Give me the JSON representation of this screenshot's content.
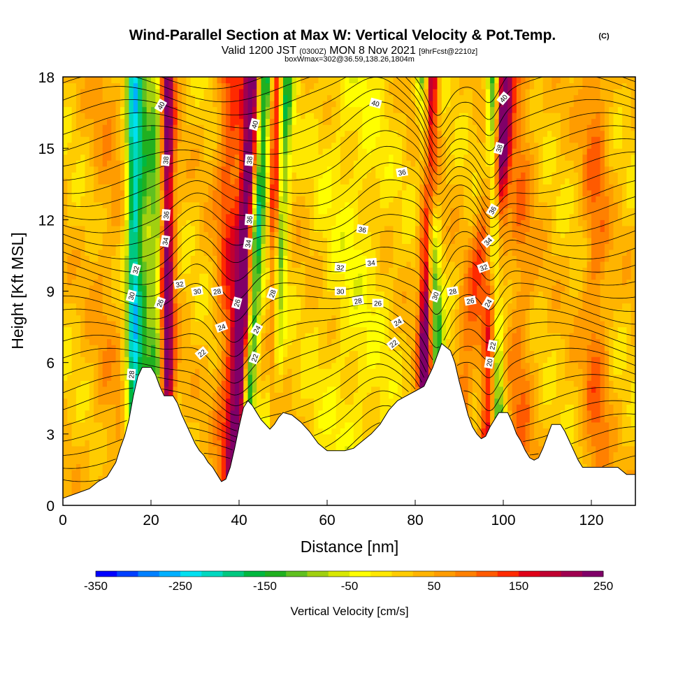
{
  "chart_data": {
    "type": "heatmap",
    "title": "Wind-Parallel Section at Max W: Vertical Velocity & Pot.Temp.",
    "title_mark": "(C)",
    "subtitle_prefix": "Valid 1200 JST",
    "subtitle_utc": "(0300Z)",
    "subtitle_date": "MON 8 Nov 2021",
    "subtitle_fcst": "[9hrFcst@2210z]",
    "subtitle2": "boxWmax=302@36.59,138.26,1804m",
    "xlabel": "Distance [nm]",
    "ylabel": "Height [Kft MSL]",
    "xlim": [
      0,
      130
    ],
    "ylim": [
      0,
      18
    ],
    "xticks": [
      0,
      20,
      40,
      60,
      80,
      100,
      120
    ],
    "yticks": [
      0,
      3,
      6,
      9,
      12,
      15,
      18
    ],
    "colorbar": {
      "label": "Vertical Velocity [cm/s]",
      "ticks": [
        -350,
        -250,
        -150,
        -50,
        50,
        150,
        250
      ],
      "range": [
        -350,
        250
      ],
      "step": 25,
      "colors": [
        "#0000ff",
        "#0040ff",
        "#0080ff",
        "#00b0ff",
        "#00e0f0",
        "#00d8c0",
        "#00c880",
        "#00b840",
        "#20b020",
        "#60c020",
        "#a0d010",
        "#d8e800",
        "#ffff00",
        "#ffe800",
        "#ffcc00",
        "#ffb400",
        "#ff9c00",
        "#ff8000",
        "#ff5a00",
        "#ff2a00",
        "#e00018",
        "#c00030",
        "#a00050",
        "#800068"
      ]
    },
    "terrain": [
      [
        0,
        0.3
      ],
      [
        3,
        0.5
      ],
      [
        6,
        0.7
      ],
      [
        8,
        1.0
      ],
      [
        10,
        1.2
      ],
      [
        12,
        1.8
      ],
      [
        13,
        2.4
      ],
      [
        14,
        2.9
      ],
      [
        15,
        3.6
      ],
      [
        16,
        4.6
      ],
      [
        17,
        5.4
      ],
      [
        18,
        5.8
      ],
      [
        20,
        5.8
      ],
      [
        21,
        5.5
      ],
      [
        22,
        5.0
      ],
      [
        23,
        4.6
      ],
      [
        25,
        4.6
      ],
      [
        26,
        4.3
      ],
      [
        27,
        3.8
      ],
      [
        28,
        3.4
      ],
      [
        29,
        3.0
      ],
      [
        30,
        2.6
      ],
      [
        31,
        2.3
      ],
      [
        32,
        2.1
      ],
      [
        33,
        1.8
      ],
      [
        34,
        1.6
      ],
      [
        35,
        1.3
      ],
      [
        36,
        1.0
      ],
      [
        37,
        1.1
      ],
      [
        38,
        1.6
      ],
      [
        39,
        2.4
      ],
      [
        40,
        3.3
      ],
      [
        41,
        4.1
      ],
      [
        42,
        4.4
      ],
      [
        43,
        4.2
      ],
      [
        44,
        3.9
      ],
      [
        45,
        3.6
      ],
      [
        46,
        3.4
      ],
      [
        47,
        3.2
      ],
      [
        48,
        3.4
      ],
      [
        49,
        3.7
      ],
      [
        50,
        3.9
      ],
      [
        52,
        3.8
      ],
      [
        54,
        3.5
      ],
      [
        56,
        3.1
      ],
      [
        58,
        2.6
      ],
      [
        60,
        2.3
      ],
      [
        64,
        2.3
      ],
      [
        66,
        2.4
      ],
      [
        68,
        2.7
      ],
      [
        70,
        3.0
      ],
      [
        72,
        3.4
      ],
      [
        74,
        4.0
      ],
      [
        76,
        4.4
      ],
      [
        78,
        4.6
      ],
      [
        80,
        4.8
      ],
      [
        82,
        5.0
      ],
      [
        84,
        5.8
      ],
      [
        86,
        6.8
      ],
      [
        88,
        6.5
      ],
      [
        89,
        6.0
      ],
      [
        90,
        5.2
      ],
      [
        91,
        4.5
      ],
      [
        92,
        3.8
      ],
      [
        93,
        3.3
      ],
      [
        94,
        3.0
      ],
      [
        95,
        2.8
      ],
      [
        96,
        2.9
      ],
      [
        97,
        3.3
      ],
      [
        98,
        3.6
      ],
      [
        99,
        3.9
      ],
      [
        101,
        3.9
      ],
      [
        102,
        3.5
      ],
      [
        103,
        3.0
      ],
      [
        104,
        2.7
      ],
      [
        105,
        2.3
      ],
      [
        106,
        2.0
      ],
      [
        107,
        1.9
      ],
      [
        108,
        2.0
      ],
      [
        109,
        2.4
      ],
      [
        110,
        2.9
      ],
      [
        111,
        3.4
      ],
      [
        113,
        3.4
      ],
      [
        114,
        3.1
      ],
      [
        115,
        2.7
      ],
      [
        116,
        2.3
      ],
      [
        117,
        1.9
      ],
      [
        118,
        1.6
      ],
      [
        121,
        1.6
      ],
      [
        124,
        1.6
      ],
      [
        126,
        1.6
      ],
      [
        128,
        1.3
      ],
      [
        130,
        1.3
      ]
    ],
    "velocity_features": [
      {
        "x0": 23.5,
        "x1": 23.5,
        "w": 1.8,
        "v": 240
      },
      {
        "x0": 21.5,
        "x1": 21.5,
        "w": 1.5,
        "v": -150
      },
      {
        "x0": 18.5,
        "x1": 18.5,
        "w": 2.0,
        "v": -120
      },
      {
        "x0": 16,
        "x1": 16,
        "w": 1.6,
        "v": -220
      },
      {
        "x0": 39.5,
        "x1": 43,
        "w": 1.8,
        "v": 240
      },
      {
        "x0": 41.5,
        "x1": 46,
        "w": 1.6,
        "v": -200
      },
      {
        "x0": 38,
        "x1": 38,
        "w": 3,
        "v": 110
      },
      {
        "x0": 47,
        "x1": 51,
        "w": 1.6,
        "v": -150
      },
      {
        "x0": 47.5,
        "x1": 48.5,
        "w": 1.2,
        "v": 160
      },
      {
        "x0": 82,
        "x1": 83.5,
        "w": 1.6,
        "v": 260
      },
      {
        "x0": 86,
        "x1": 82,
        "w": 1.6,
        "v": -190
      },
      {
        "x0": 96,
        "x1": 100.5,
        "w": 1.8,
        "v": 160
      },
      {
        "x0": 99,
        "x1": 97.5,
        "w": 1.4,
        "v": -200
      },
      {
        "x0": 88,
        "x1": 101,
        "w": 2.5,
        "v": 90
      },
      {
        "x0": 104,
        "x1": 104,
        "w": 3,
        "v": 60
      },
      {
        "x0": 121,
        "x1": 121,
        "w": 3,
        "v": 70
      },
      {
        "x0": 66,
        "x1": 66,
        "w": 8,
        "v": -40
      },
      {
        "x0": 10,
        "x1": 10,
        "w": 4,
        "v": 30
      }
    ],
    "theta_levels": [
      20,
      22,
      24,
      26,
      28,
      30,
      32,
      34,
      36,
      38,
      40
    ],
    "contour_labels": [
      {
        "text": "40",
        "x": 22.2,
        "y": 16.8,
        "r": -60
      },
      {
        "text": "38",
        "x": 23.3,
        "y": 14.5,
        "r": -85
      },
      {
        "text": "36",
        "x": 23.4,
        "y": 12.2,
        "r": -85
      },
      {
        "text": "34",
        "x": 23.2,
        "y": 11.1,
        "r": -80
      },
      {
        "text": "32",
        "x": 16.5,
        "y": 9.9,
        "r": -75
      },
      {
        "text": "30",
        "x": 15.5,
        "y": 8.8,
        "r": -75
      },
      {
        "text": "28",
        "x": 15.5,
        "y": 5.5,
        "r": -85
      },
      {
        "text": "26",
        "x": 22,
        "y": 8.5,
        "r": -70
      },
      {
        "text": "32",
        "x": 26.5,
        "y": 9.3,
        "r": -10
      },
      {
        "text": "30",
        "x": 30.5,
        "y": 9.0,
        "r": -10
      },
      {
        "text": "28",
        "x": 35,
        "y": 9.0,
        "r": -10
      },
      {
        "text": "26",
        "x": 39.5,
        "y": 8.5,
        "r": -75
      },
      {
        "text": "24",
        "x": 36,
        "y": 7.5,
        "r": -20
      },
      {
        "text": "22",
        "x": 31.5,
        "y": 6.4,
        "r": -40
      },
      {
        "text": "40",
        "x": 43.5,
        "y": 16.0,
        "r": -75
      },
      {
        "text": "38",
        "x": 42.3,
        "y": 14.5,
        "r": -85
      },
      {
        "text": "36",
        "x": 42.3,
        "y": 12.0,
        "r": -85
      },
      {
        "text": "34",
        "x": 42,
        "y": 11.0,
        "r": -80
      },
      {
        "text": "28",
        "x": 47.5,
        "y": 8.9,
        "r": -70
      },
      {
        "text": "24",
        "x": 44,
        "y": 7.4,
        "r": -60
      },
      {
        "text": "22",
        "x": 43.5,
        "y": 6.2,
        "r": -70
      },
      {
        "text": "40",
        "x": 71,
        "y": 16.9,
        "r": 15
      },
      {
        "text": "36",
        "x": 77,
        "y": 14.0,
        "r": -10
      },
      {
        "text": "36",
        "x": 68,
        "y": 11.6,
        "r": 10
      },
      {
        "text": "34",
        "x": 70,
        "y": 10.2,
        "r": -5
      },
      {
        "text": "32",
        "x": 63,
        "y": 10.0,
        "r": 5
      },
      {
        "text": "30",
        "x": 63,
        "y": 9.0,
        "r": 0
      },
      {
        "text": "28",
        "x": 67,
        "y": 8.6,
        "r": -10
      },
      {
        "text": "26",
        "x": 71.5,
        "y": 8.5,
        "r": 0
      },
      {
        "text": "24",
        "x": 76,
        "y": 7.7,
        "r": -30
      },
      {
        "text": "22",
        "x": 75,
        "y": 6.8,
        "r": -40
      },
      {
        "text": "30",
        "x": 84.5,
        "y": 8.8,
        "r": -70
      },
      {
        "text": "28",
        "x": 88.5,
        "y": 9.0,
        "r": -10
      },
      {
        "text": "26",
        "x": 92.5,
        "y": 8.6,
        "r": -10
      },
      {
        "text": "24",
        "x": 96.5,
        "y": 8.5,
        "r": -60
      },
      {
        "text": "22",
        "x": 97.5,
        "y": 6.7,
        "r": -80
      },
      {
        "text": "20",
        "x": 96.8,
        "y": 6.0,
        "r": -80
      },
      {
        "text": "32",
        "x": 95.5,
        "y": 10.0,
        "r": -20
      },
      {
        "text": "34",
        "x": 96.5,
        "y": 11.1,
        "r": -45
      },
      {
        "text": "36",
        "x": 97.5,
        "y": 12.4,
        "r": -60
      },
      {
        "text": "38",
        "x": 99,
        "y": 15.0,
        "r": -75
      },
      {
        "text": "40",
        "x": 100,
        "y": 17.1,
        "r": -50
      }
    ]
  }
}
